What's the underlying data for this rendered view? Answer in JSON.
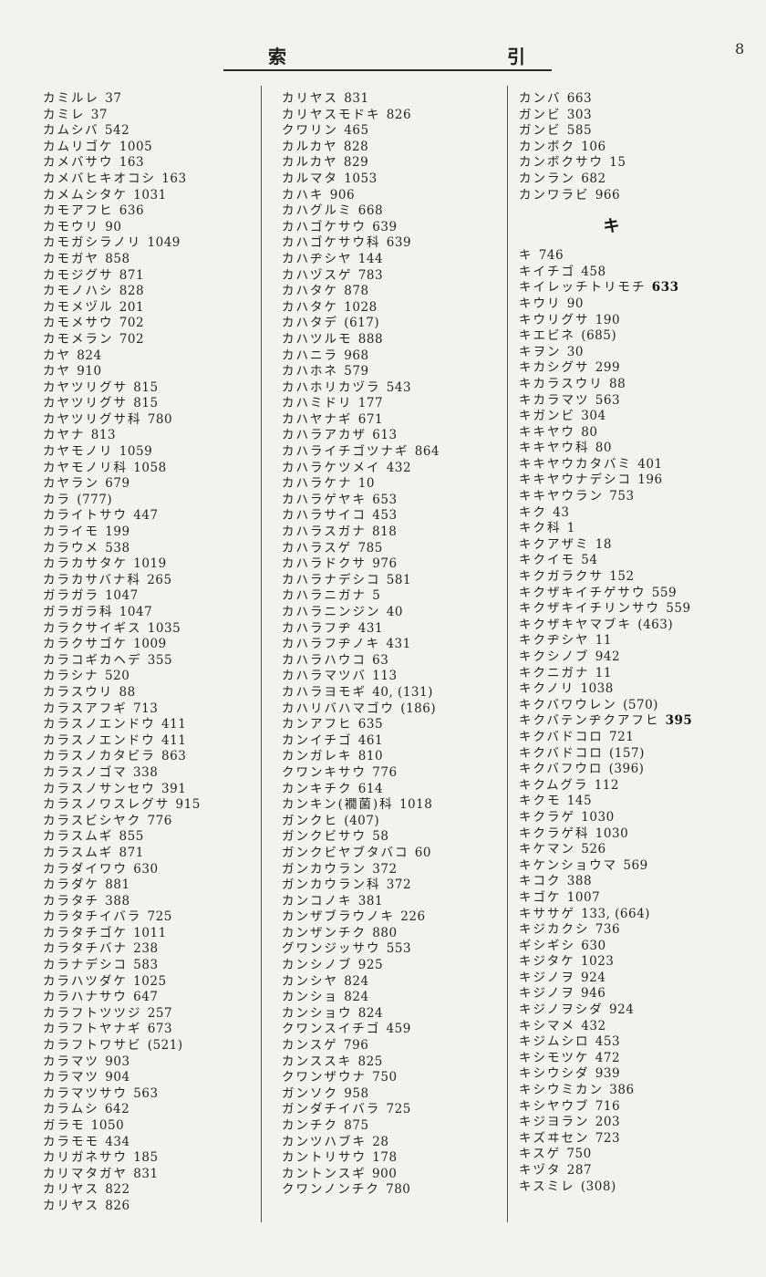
{
  "page": {
    "number": "8",
    "header_left": "索",
    "header_right": "引"
  },
  "columns": [
    {
      "entries": [
        {
          "t": "カミルレ",
          "p": "37"
        },
        {
          "t": "カミレ",
          "p": "37"
        },
        {
          "t": "カムシバ",
          "p": "542"
        },
        {
          "t": "カムリゴケ",
          "p": "1005"
        },
        {
          "t": "カメバサウ",
          "p": "163"
        },
        {
          "t": "カメバヒキオコシ",
          "p": "163"
        },
        {
          "t": "カメムシタケ",
          "p": "1031"
        },
        {
          "t": "カモアフヒ",
          "p": "636"
        },
        {
          "t": "カモウリ",
          "p": "90"
        },
        {
          "t": "カモガシラノリ",
          "p": "1049"
        },
        {
          "t": "カモガヤ",
          "p": "858"
        },
        {
          "t": "カモジグサ",
          "p": "871"
        },
        {
          "t": "カモノハシ",
          "p": "828"
        },
        {
          "t": "カモメヅル",
          "p": "201"
        },
        {
          "t": "カモメサウ",
          "p": "702"
        },
        {
          "t": "カモメラン",
          "p": "702"
        },
        {
          "t": "カヤ",
          "p": "824"
        },
        {
          "t": "カヤ",
          "p": "910"
        },
        {
          "t": "カヤツリグサ",
          "p": "815"
        },
        {
          "t": "カヤツリグサ",
          "p": "815"
        },
        {
          "t": "カヤツリグサ科",
          "p": "780"
        },
        {
          "t": "カヤナ",
          "p": "813"
        },
        {
          "t": "カヤモノリ",
          "p": "1059"
        },
        {
          "t": "カヤモノリ科",
          "p": "1058"
        },
        {
          "t": "カヤラン",
          "p": "679"
        },
        {
          "t": "カラ",
          "p": "(777)"
        },
        {
          "t": "カライトサウ",
          "p": "447"
        },
        {
          "t": "カライモ",
          "p": "199"
        },
        {
          "t": "カラウメ",
          "p": "538"
        },
        {
          "t": "カラカサタケ",
          "p": "1019"
        },
        {
          "t": "カラカサバナ科",
          "p": "265"
        },
        {
          "t": "ガラガラ",
          "p": "1047"
        },
        {
          "t": "ガラガラ科",
          "p": "1047"
        },
        {
          "t": "カラクサイギス",
          "p": "1035"
        },
        {
          "t": "カラクサゴケ",
          "p": "1009"
        },
        {
          "t": "カラコギカヘデ",
          "p": "355"
        },
        {
          "t": "カラシナ",
          "p": "520"
        },
        {
          "t": "カラスウリ",
          "p": "88"
        },
        {
          "t": "カラスアフギ",
          "p": "713"
        },
        {
          "t": "カラスノエンドウ",
          "p": "411"
        },
        {
          "t": "カラスノエンドウ",
          "p": "411"
        },
        {
          "t": "カラスノカタビラ",
          "p": "863"
        },
        {
          "t": "カラスノゴマ",
          "p": "338"
        },
        {
          "t": "カラスノサンセウ",
          "p": "391"
        },
        {
          "t": "カラスノワスレグサ",
          "p": "915"
        },
        {
          "t": "カラスビシヤク",
          "p": "776"
        },
        {
          "t": "カラスムギ",
          "p": "855"
        },
        {
          "t": "カラスムギ",
          "p": "871"
        },
        {
          "t": "カラダイワウ",
          "p": "630"
        },
        {
          "t": "カラダケ",
          "p": "881"
        },
        {
          "t": "カラタチ",
          "p": "388"
        },
        {
          "t": "カラタチイバラ",
          "p": "725"
        },
        {
          "t": "カラタチゴケ",
          "p": "1011"
        },
        {
          "t": "カラタチバナ",
          "p": "238"
        },
        {
          "t": "カラナデシコ",
          "p": "583"
        },
        {
          "t": "カラハツダケ",
          "p": "1025"
        },
        {
          "t": "カラハナサウ",
          "p": "647"
        },
        {
          "t": "カラフトツツジ",
          "p": "257"
        },
        {
          "t": "カラフトヤナギ",
          "p": "673"
        },
        {
          "t": "カラフトワサビ",
          "p": "(521)"
        },
        {
          "t": "カラマツ",
          "p": "903"
        },
        {
          "t": "カラマツ",
          "p": "904"
        },
        {
          "t": "カラマツサウ",
          "p": "563"
        },
        {
          "t": "カラムシ",
          "p": "642"
        },
        {
          "t": "ガラモ",
          "p": "1050"
        },
        {
          "t": "カラモモ",
          "p": "434"
        },
        {
          "t": "カリガネサウ",
          "p": "185"
        },
        {
          "t": "カリマタガヤ",
          "p": "831"
        },
        {
          "t": "カリヤス",
          "p": "822"
        },
        {
          "t": "カリヤス",
          "p": "826"
        }
      ]
    },
    {
      "entries": [
        {
          "t": "カリヤス",
          "p": "831"
        },
        {
          "t": "カリヤスモドキ",
          "p": "826"
        },
        {
          "t": "クワリン",
          "p": "465"
        },
        {
          "t": "カルカヤ",
          "p": "828"
        },
        {
          "t": "カルカヤ",
          "p": "829"
        },
        {
          "t": "カルマタ",
          "p": "1053"
        },
        {
          "t": "カハキ",
          "p": "906"
        },
        {
          "t": "カハグルミ",
          "p": "668"
        },
        {
          "t": "カハゴケサウ",
          "p": "639"
        },
        {
          "t": "カハゴケサウ科",
          "p": "639"
        },
        {
          "t": "カハヂシヤ",
          "p": "144"
        },
        {
          "t": "カハヅスゲ",
          "p": "783"
        },
        {
          "t": "カハタケ",
          "p": "878"
        },
        {
          "t": "カハタケ",
          "p": "1028"
        },
        {
          "t": "カハタデ",
          "p": "(617)"
        },
        {
          "t": "カハツルモ",
          "p": "888"
        },
        {
          "t": "カハニラ",
          "p": "968"
        },
        {
          "t": "カハホネ",
          "p": "579"
        },
        {
          "t": "カハホリカヅラ",
          "p": "543"
        },
        {
          "t": "カハミドリ",
          "p": "177"
        },
        {
          "t": "カハヤナギ",
          "p": "671"
        },
        {
          "t": "カハラアカザ",
          "p": "613"
        },
        {
          "t": "カハライチゴツナギ",
          "p": "864"
        },
        {
          "t": "カハラケツメイ",
          "p": "432"
        },
        {
          "t": "カハラケナ",
          "p": "10"
        },
        {
          "t": "カハラゲヤキ",
          "p": "653"
        },
        {
          "t": "カハラサイコ",
          "p": "453"
        },
        {
          "t": "カハラスガナ",
          "p": "818"
        },
        {
          "t": "カハラスゲ",
          "p": "785"
        },
        {
          "t": "カハラドクサ",
          "p": "976"
        },
        {
          "t": "カハラナデシコ",
          "p": "581"
        },
        {
          "t": "カハラニガナ",
          "p": "5"
        },
        {
          "t": "カハラニンジン",
          "p": "40"
        },
        {
          "t": "カハラフヂ",
          "p": "431"
        },
        {
          "t": "カハラフヂノキ",
          "p": "431"
        },
        {
          "t": "カハラハウコ",
          "p": "63"
        },
        {
          "t": "カハラマツバ",
          "p": "113"
        },
        {
          "t": "カハラヨモギ",
          "p": "40, (131)"
        },
        {
          "t": "カハリバハマゴウ",
          "p": "(186)"
        },
        {
          "t": "カンアフヒ",
          "p": "635"
        },
        {
          "t": "カンイチゴ",
          "p": "461"
        },
        {
          "t": "カンガレキ",
          "p": "810"
        },
        {
          "t": "クワンキサウ",
          "p": "776"
        },
        {
          "t": "カンキチク",
          "p": "614"
        },
        {
          "t": "カンキン(襉菌)科",
          "p": "1018"
        },
        {
          "t": "ガンクヒ",
          "p": "(407)"
        },
        {
          "t": "ガンクビサウ",
          "p": "58"
        },
        {
          "t": "ガンクビヤブタバコ",
          "p": "60"
        },
        {
          "t": "ガンカウラン",
          "p": "372"
        },
        {
          "t": "ガンカウラン科",
          "p": "372"
        },
        {
          "t": "カンコノキ",
          "p": "381"
        },
        {
          "t": "カンザブラウノキ",
          "p": "226"
        },
        {
          "t": "カンザンチク",
          "p": "880"
        },
        {
          "t": "グワンジッサウ",
          "p": "553"
        },
        {
          "t": "カンシノブ",
          "p": "925"
        },
        {
          "t": "カンシヤ",
          "p": "824"
        },
        {
          "t": "カンショ",
          "p": "824"
        },
        {
          "t": "カンショウ",
          "p": "824"
        },
        {
          "t": "クワンスイチゴ",
          "p": "459"
        },
        {
          "t": "カンスゲ",
          "p": "796"
        },
        {
          "t": "カンススキ",
          "p": "825"
        },
        {
          "t": "クワンザウナ",
          "p": "750"
        },
        {
          "t": "ガンソク",
          "p": "958"
        },
        {
          "t": "ガンダチイバラ",
          "p": "725"
        },
        {
          "t": "カンチク",
          "p": "875"
        },
        {
          "t": "カンツハブキ",
          "p": "28"
        },
        {
          "t": "カントリサウ",
          "p": "178"
        },
        {
          "t": "カントンスギ",
          "p": "900"
        },
        {
          "t": "クワンノンチク",
          "p": "780"
        }
      ]
    },
    {
      "entries": [
        {
          "t": "カンバ",
          "p": "663"
        },
        {
          "t": "ガンビ",
          "p": "303"
        },
        {
          "t": "ガンビ",
          "p": "585"
        },
        {
          "t": "カンボク",
          "p": "106"
        },
        {
          "t": "カンボクサウ",
          "p": "15"
        },
        {
          "t": "カンラン",
          "p": "682"
        },
        {
          "t": "カンワラビ",
          "p": "966"
        },
        {
          "type": "section",
          "t": "キ"
        },
        {
          "t": "キ",
          "p": "746"
        },
        {
          "t": "キイチゴ",
          "p": "458"
        },
        {
          "t": "キイレッチトリモチ",
          "p": "633",
          "b": true
        },
        {
          "t": "キウリ",
          "p": "90"
        },
        {
          "t": "キウリグサ",
          "p": "190"
        },
        {
          "t": "キエビネ",
          "p": "(685)"
        },
        {
          "t": "キヲン",
          "p": "30"
        },
        {
          "t": "キカシグサ",
          "p": "299"
        },
        {
          "t": "キカラスウリ",
          "p": "88"
        },
        {
          "t": "キカラマツ",
          "p": "563"
        },
        {
          "t": "キガンビ",
          "p": "304"
        },
        {
          "t": "キキヤウ",
          "p": "80"
        },
        {
          "t": "キキヤウ科",
          "p": "80"
        },
        {
          "t": "キキヤウカタバミ",
          "p": "401"
        },
        {
          "t": "キキヤウナデシコ",
          "p": "196"
        },
        {
          "t": "キキヤウラン",
          "p": "753"
        },
        {
          "t": "キク",
          "p": "43"
        },
        {
          "t": "キク科",
          "p": "1"
        },
        {
          "t": "キクアザミ",
          "p": "18"
        },
        {
          "t": "キクイモ",
          "p": "54"
        },
        {
          "t": "キクガラクサ",
          "p": "152"
        },
        {
          "t": "キクザキイチゲサウ",
          "p": "559"
        },
        {
          "t": "キクザキイチリンサウ",
          "p": "559"
        },
        {
          "t": "キクザキヤマブキ",
          "p": "(463)"
        },
        {
          "t": "キクヂシヤ",
          "p": "11"
        },
        {
          "t": "キクシノブ",
          "p": "942"
        },
        {
          "t": "キクニガナ",
          "p": "11"
        },
        {
          "t": "キクノリ",
          "p": "1038"
        },
        {
          "t": "キクバワウレン",
          "p": "(570)"
        },
        {
          "t": "キクバテンヂクアフヒ",
          "p": "395",
          "b": true
        },
        {
          "t": "キクバドコロ",
          "p": "721"
        },
        {
          "t": "キクバドコロ",
          "p": "(157)"
        },
        {
          "t": "キクバフウロ",
          "p": "(396)"
        },
        {
          "t": "キクムグラ",
          "p": "112"
        },
        {
          "t": "キクモ",
          "p": "145"
        },
        {
          "t": "キクラゲ",
          "p": "1030"
        },
        {
          "t": "キクラゲ科",
          "p": "1030"
        },
        {
          "t": "キケマン",
          "p": "526"
        },
        {
          "t": "キケンショウマ",
          "p": "569"
        },
        {
          "t": "キコク",
          "p": "388"
        },
        {
          "t": "キゴケ",
          "p": "1007"
        },
        {
          "t": "キササゲ",
          "p": "133, (664)"
        },
        {
          "t": "キジカクシ",
          "p": "736"
        },
        {
          "t": "ギシギシ",
          "p": "630"
        },
        {
          "t": "キジタケ",
          "p": "1023"
        },
        {
          "t": "キジノヲ",
          "p": "924"
        },
        {
          "t": "キジノヲ",
          "p": "946"
        },
        {
          "t": "キジノヲシダ",
          "p": "924"
        },
        {
          "t": "キシマメ",
          "p": "432"
        },
        {
          "t": "キジムシロ",
          "p": "453"
        },
        {
          "t": "キシモツケ",
          "p": "472"
        },
        {
          "t": "キシウシダ",
          "p": "939"
        },
        {
          "t": "キシウミカン",
          "p": "386"
        },
        {
          "t": "キシヤウブ",
          "p": "716"
        },
        {
          "t": "キジヨラン",
          "p": "203"
        },
        {
          "t": "キズヰセン",
          "p": "723"
        },
        {
          "t": "キスゲ",
          "p": "750"
        },
        {
          "t": "キヅタ",
          "p": "287"
        },
        {
          "t": "キスミレ",
          "p": "(308)"
        }
      ]
    }
  ]
}
